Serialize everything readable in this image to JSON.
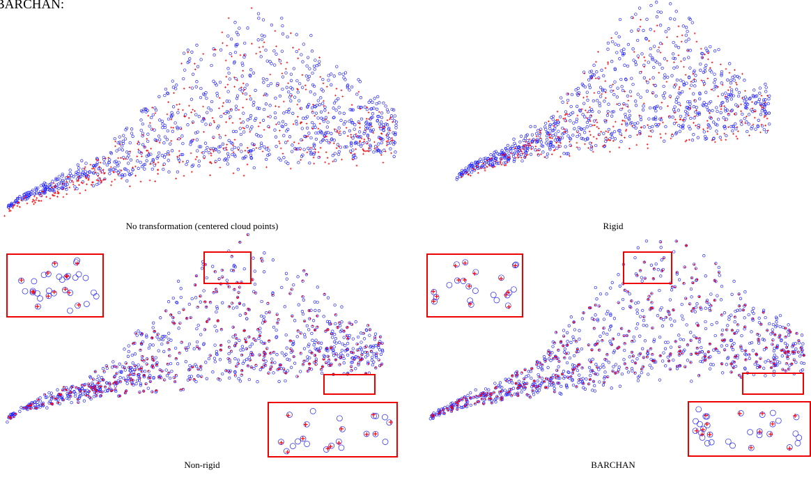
{
  "header": {
    "text": "BARCHAN:"
  },
  "panels": [
    {
      "caption": "No transformation (centered cloud points)"
    },
    {
      "caption": "Rigid"
    },
    {
      "caption": "Non-rigid"
    },
    {
      "caption": "BARCHAN"
    }
  ]
}
